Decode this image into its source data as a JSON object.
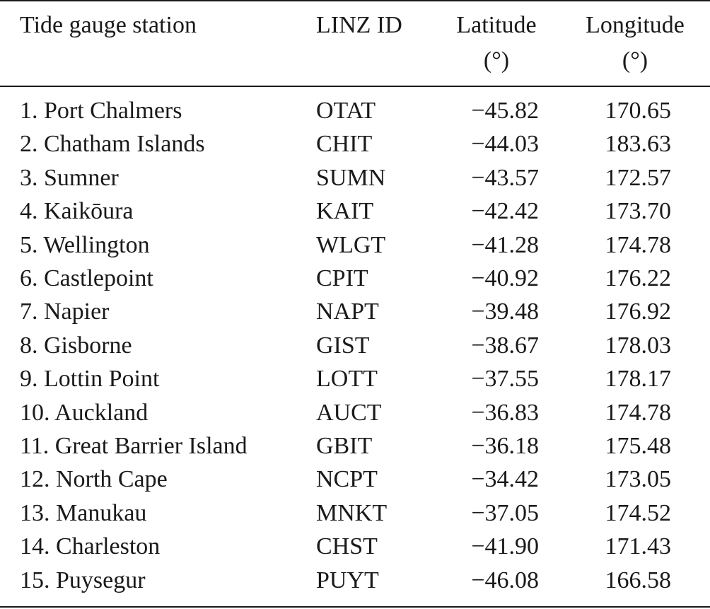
{
  "table": {
    "headers": {
      "station": "Tide gauge station",
      "linz_id": "LINZ ID",
      "latitude": "Latitude",
      "latitude_unit": "(°)",
      "longitude": "Longitude",
      "longitude_unit": "(°)"
    },
    "rows": [
      {
        "station": "1. Port Chalmers",
        "id": "OTAT",
        "lat": "−45.82",
        "lon": "170.65"
      },
      {
        "station": "2. Chatham Islands",
        "id": "CHIT",
        "lat": "−44.03",
        "lon": "183.63"
      },
      {
        "station": "3. Sumner",
        "id": "SUMN",
        "lat": "−43.57",
        "lon": "172.57"
      },
      {
        "station": "4. Kaikōura",
        "id": "KAIT",
        "lat": "−42.42",
        "lon": "173.70"
      },
      {
        "station": "5. Wellington",
        "id": "WLGT",
        "lat": "−41.28",
        "lon": "174.78"
      },
      {
        "station": "6. Castlepoint",
        "id": "CPIT",
        "lat": "−40.92",
        "lon": "176.22"
      },
      {
        "station": "7. Napier",
        "id": "NAPT",
        "lat": "−39.48",
        "lon": "176.92"
      },
      {
        "station": "8. Gisborne",
        "id": "GIST",
        "lat": "−38.67",
        "lon": "178.03"
      },
      {
        "station": "9. Lottin Point",
        "id": "LOTT",
        "lat": "−37.55",
        "lon": "178.17"
      },
      {
        "station": "10. Auckland",
        "id": "AUCT",
        "lat": "−36.83",
        "lon": "174.78"
      },
      {
        "station": "11. Great Barrier Island",
        "id": "GBIT",
        "lat": "−36.18",
        "lon": "175.48"
      },
      {
        "station": "12. North Cape",
        "id": "NCPT",
        "lat": "−34.42",
        "lon": "173.05"
      },
      {
        "station": "13. Manukau",
        "id": "MNKT",
        "lat": "−37.05",
        "lon": "174.52"
      },
      {
        "station": "14. Charleston",
        "id": "CHST",
        "lat": "−41.90",
        "lon": "171.43"
      },
      {
        "station": "15. Puysegur",
        "id": "PUYT",
        "lat": "−46.08",
        "lon": "166.58"
      }
    ]
  }
}
